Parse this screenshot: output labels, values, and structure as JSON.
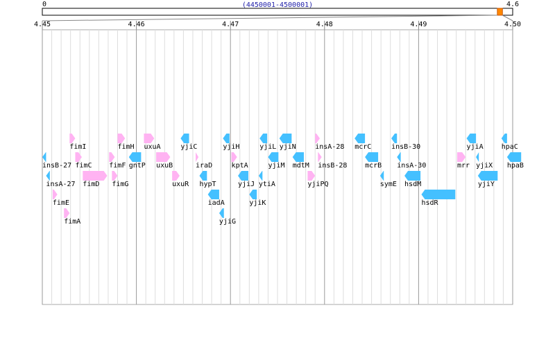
{
  "chart_data": {
    "type": "gene-map",
    "title": "(4450001-4500001)",
    "overview": {
      "xlim": [
        0,
        4.6
      ],
      "xticks": [
        0,
        4.6
      ],
      "region": [
        4.45,
        {
          "value": 4.5,
          "label": "4.50"
        }
      ]
    },
    "xlim": [
      4.45,
      4.5
    ],
    "xticks": [
      4.45,
      4.46,
      4.47,
      4.48,
      4.49,
      {
        "value": 4.5,
        "label": "4.50"
      }
    ],
    "minor_divisions": 10,
    "grid": true,
    "colors": {
      "+": "#ffb3f2",
      "-": "#44c0ff"
    },
    "genes": [
      {
        "name": "fimI",
        "start": 4.4529,
        "end": 4.4535,
        "strand": "+"
      },
      {
        "name": "fimH",
        "start": 4.458,
        "end": 4.4588,
        "strand": "+"
      },
      {
        "name": "yjiC",
        "start": 4.4647,
        "end": 4.4656,
        "strand": "-"
      },
      {
        "name": "yjiH",
        "start": 4.4692,
        "end": 4.4699,
        "strand": "-"
      },
      {
        "name": "yjiL",
        "start": 4.4731,
        "end": 4.4739,
        "strand": "-"
      },
      {
        "name": "insA-28",
        "start": 4.479,
        "end": 4.4795,
        "strand": "+"
      },
      {
        "name": "insB-30",
        "start": 4.4871,
        "end": 4.4877,
        "strand": "-"
      },
      {
        "name": "yjiA",
        "start": 4.4951,
        "end": 4.4961,
        "strand": "-"
      },
      {
        "name": "insB-27",
        "start": 4.45,
        "end": 4.4504,
        "strand": "-"
      },
      {
        "name": "fimC",
        "start": 4.4535,
        "end": 4.4542,
        "strand": "+"
      },
      {
        "name": "gntP",
        "start": 4.4592,
        "end": 4.4605,
        "strand": "-"
      },
      {
        "name": "iraD",
        "start": 4.4663,
        "end": 4.4666,
        "strand": "+"
      },
      {
        "name": "kptA",
        "start": 4.4701,
        "end": 4.4707,
        "strand": "+"
      },
      {
        "name": "yjiM",
        "start": 4.474,
        "end": 4.4751,
        "strand": "-"
      },
      {
        "name": "insB-28",
        "start": 4.4793,
        "end": 4.4797,
        "strand": "+"
      },
      {
        "name": "insA-30",
        "start": 4.4877,
        "end": 4.4881,
        "strand": "-"
      },
      {
        "name": "yjiX",
        "start": 4.4961,
        "end": 4.4964,
        "strand": "-"
      },
      {
        "name": "insA-27",
        "start": 4.4504,
        "end": 4.4508,
        "strand": "-"
      },
      {
        "name": "fimD",
        "start": 4.4543,
        "end": 4.4569,
        "strand": "+"
      },
      {
        "name": "uxuA",
        "start": 4.4608,
        "end": 4.4619,
        "strand": "+"
      },
      {
        "name": "hypT",
        "start": 4.4667,
        "end": 4.4675,
        "strand": "-"
      },
      {
        "name": "yjiJ",
        "start": 4.4708,
        "end": 4.4719,
        "strand": "-"
      },
      {
        "name": "yjiN",
        "start": 4.4752,
        "end": 4.4765,
        "strand": "-"
      },
      {
        "name": "mcrC",
        "start": 4.4832,
        "end": 4.4843,
        "strand": "-"
      },
      {
        "name": "hsdM",
        "start": 4.4885,
        "end": 4.4902,
        "strand": "-"
      },
      {
        "name": "yjiY",
        "start": 4.4963,
        "end": 4.4984,
        "strand": "-"
      },
      {
        "name": "fimE",
        "start": 4.4511,
        "end": 4.4516,
        "strand": "+"
      },
      {
        "name": "fimF",
        "start": 4.4571,
        "end": 4.4577,
        "strand": "+"
      },
      {
        "name": "uxuB",
        "start": 4.4621,
        "end": 4.4636,
        "strand": "+"
      },
      {
        "name": "iadA",
        "start": 4.4676,
        "end": 4.4688,
        "strand": "-"
      },
      {
        "name": "yjiK",
        "start": 4.472,
        "end": 4.4728,
        "strand": "-"
      },
      {
        "name": "mdtM",
        "start": 4.4766,
        "end": 4.4778,
        "strand": "-"
      },
      {
        "name": "mcrB",
        "start": 4.4843,
        "end": 4.4857,
        "strand": "-"
      },
      {
        "name": "hsdR",
        "start": 4.4903,
        "end": 4.4939,
        "strand": "-"
      },
      {
        "name": "hpaC",
        "start": 4.4988,
        "end": 4.4994,
        "strand": "-"
      },
      {
        "name": "fimA",
        "start": 4.4523,
        "end": 4.4529,
        "strand": "+"
      },
      {
        "name": "fimG",
        "start": 4.4574,
        "end": 4.458,
        "strand": "+"
      },
      {
        "name": "uxuR",
        "start": 4.4638,
        "end": 4.4646,
        "strand": "+"
      },
      {
        "name": "yjiG",
        "start": 4.4688,
        "end": 4.4693,
        "strand": "-"
      },
      {
        "name": "ytiA",
        "start": 4.473,
        "end": 4.4734,
        "strand": "-"
      },
      {
        "name": "yjiPQ",
        "start": 4.4782,
        "end": 4.479,
        "strand": "+"
      },
      {
        "name": "symE",
        "start": 4.4859,
        "end": 4.4863,
        "strand": "-"
      },
      {
        "name": "mrr",
        "start": 4.4941,
        "end": 4.495,
        "strand": "+"
      },
      {
        "name": "hpaB",
        "start": 4.4994,
        "end": 4.5009,
        "strand": "-"
      }
    ]
  }
}
